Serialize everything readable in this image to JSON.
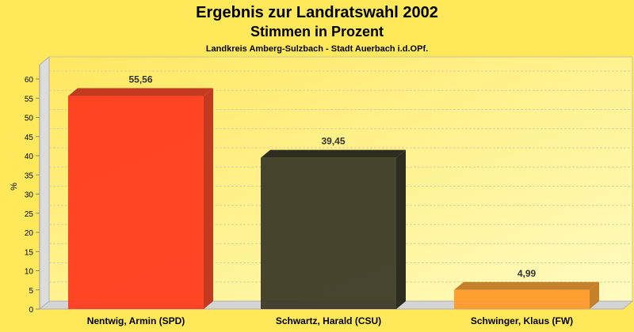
{
  "chart_data": {
    "type": "bar",
    "title": "Ergebnis zur Landratswahl 2002",
    "subtitle": "Stimmen in Prozent",
    "caption": "Landkreis Amberg-Sulzbach - Stadt Auerbach i.d.OPf.",
    "xlabel": "",
    "ylabel": "%",
    "ylim": [
      0,
      60
    ],
    "yticks": [
      0,
      5,
      10,
      15,
      20,
      25,
      30,
      35,
      40,
      45,
      50,
      55,
      60
    ],
    "categories": [
      "Nentwig, Armin (SPD)",
      "Schwartz, Harald (CSU)",
      "Schwinger, Klaus (FW)"
    ],
    "values": [
      55.56,
      39.45,
      4.99
    ],
    "value_labels": [
      "55,56",
      "39,45",
      "4,99"
    ],
    "colors": [
      "#ff3b1f",
      "#3d3a28",
      "#ff9a2a"
    ],
    "side_colors": [
      "#c23a20",
      "#2e2c1e",
      "#c5802a"
    ],
    "grid": true
  }
}
